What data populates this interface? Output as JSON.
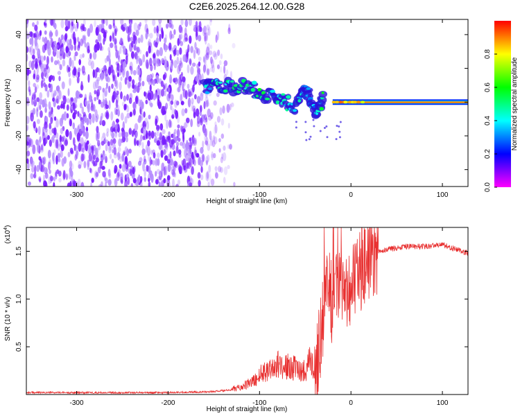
{
  "title": "C2E6.2025.264.12.00.G28",
  "chart_data": [
    {
      "type": "heatmap",
      "xlabel": "Height of straight line (km)",
      "ylabel": "Frequency (Hz)",
      "xlim": [
        -355,
        128
      ],
      "ylim": [
        -50,
        49
      ],
      "xticks": [
        -300,
        -200,
        -100,
        0,
        100
      ],
      "yticks": [
        -40,
        -20,
        0,
        20,
        40
      ],
      "grid": false,
      "colorbar": {
        "label": "Normalized spectral amplitude",
        "range": [
          0,
          1
        ],
        "ticks": [
          0.0,
          0.2,
          0.4,
          0.6,
          0.8
        ],
        "colors": [
          "#ff00ff",
          "#0000ff",
          "#00ffff",
          "#00ff00",
          "#ffff00",
          "#ff0000"
        ]
      },
      "features": {
        "noise_region_x": [
          -355,
          -160
        ],
        "noise_amplitude": 0.1,
        "dispersed_signal": [
          {
            "x": -160,
            "y": 8,
            "amplitude": 0.3
          },
          {
            "x": -140,
            "y": 9,
            "amplitude": 0.4
          },
          {
            "x": -120,
            "y": 9,
            "amplitude": 0.45
          },
          {
            "x": -100,
            "y": 6,
            "amplitude": 0.45
          },
          {
            "x": -80,
            "y": 2,
            "amplitude": 0.4
          },
          {
            "x": -60,
            "y": -2,
            "amplitude": 0.35
          },
          {
            "x": -50,
            "y": 8,
            "amplitude": 0.35
          },
          {
            "x": -40,
            "y": -5,
            "amplitude": 0.3
          },
          {
            "x": -30,
            "y": 2,
            "amplitude": 0.5
          }
        ],
        "carrier_line": {
          "y": 0,
          "x_start": -20,
          "x_end": 128,
          "amplitude": 0.9
        }
      }
    },
    {
      "type": "line",
      "xlabel": "Height of straight line (km)",
      "ylabel": "SNR (10 * v/v)",
      "multiplier_label": "(x10",
      "multiplier_exp": "4",
      "multiplier_close": ")",
      "xlim": [
        -355,
        128
      ],
      "ylim": [
        0,
        1.75
      ],
      "xticks": [
        -300,
        -200,
        -100,
        0,
        100
      ],
      "yticks": [
        0.5,
        1.0,
        1.5
      ],
      "ytick_labels": [
        "0.5",
        "1.0",
        "1.5"
      ],
      "color": "#e83030",
      "series": [
        {
          "x": [
            -355,
            -200,
            -150,
            -120,
            -105,
            -95,
            -80,
            -60,
            -50,
            -45,
            -40,
            -35,
            -30,
            -25,
            -20,
            -15,
            -10,
            -5,
            0,
            5,
            10,
            20,
            30,
            40,
            60,
            80,
            100,
            115,
            128
          ],
          "y": [
            0.02,
            0.02,
            0.03,
            0.06,
            0.12,
            0.2,
            0.25,
            0.22,
            0.2,
            0.3,
            0.2,
            0.5,
            0.9,
            1.1,
            0.9,
            1.1,
            1.2,
            1.15,
            1.15,
            1.2,
            1.3,
            1.4,
            1.5,
            1.52,
            1.55,
            1.55,
            1.57,
            1.52,
            1.48
          ]
        }
      ]
    }
  ]
}
